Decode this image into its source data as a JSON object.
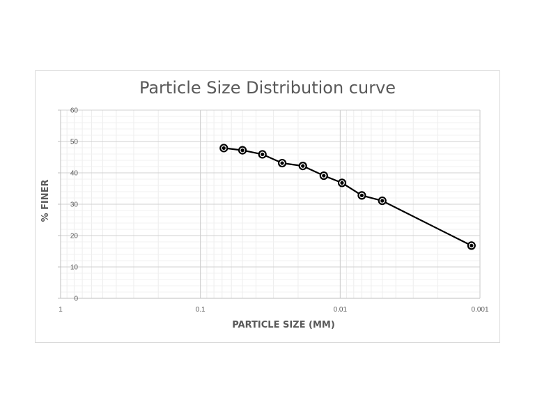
{
  "chart_data": {
    "type": "scatter",
    "title": "Particle Size Distribution curve",
    "xlabel": "PARTICLE SIZE (MM)",
    "ylabel": "% FINER",
    "x_scale": "log",
    "x_reversed": true,
    "xlim": [
      1,
      0.001
    ],
    "ylim": [
      0,
      60
    ],
    "x_ticks": [
      1,
      0.1,
      0.01,
      0.001
    ],
    "x_tick_labels": [
      "1",
      "0.1",
      "0.01",
      "0.001"
    ],
    "y_ticks": [
      0,
      10,
      20,
      30,
      40,
      50,
      60
    ],
    "y_tick_labels": [
      "0",
      "10",
      "20",
      "30",
      "40",
      "50",
      "60"
    ],
    "grid": true,
    "legend": "none",
    "series": [
      {
        "color": "#000000",
        "line": true,
        "marker": "circle",
        "x": [
          0.068,
          0.05,
          0.036,
          0.026,
          0.0185,
          0.0131,
          0.0097,
          0.007,
          0.005,
          0.00115
        ],
        "y": [
          47.9,
          47.2,
          45.9,
          43.1,
          42.2,
          39.1,
          36.8,
          32.8,
          31.1,
          16.8
        ]
      }
    ]
  }
}
